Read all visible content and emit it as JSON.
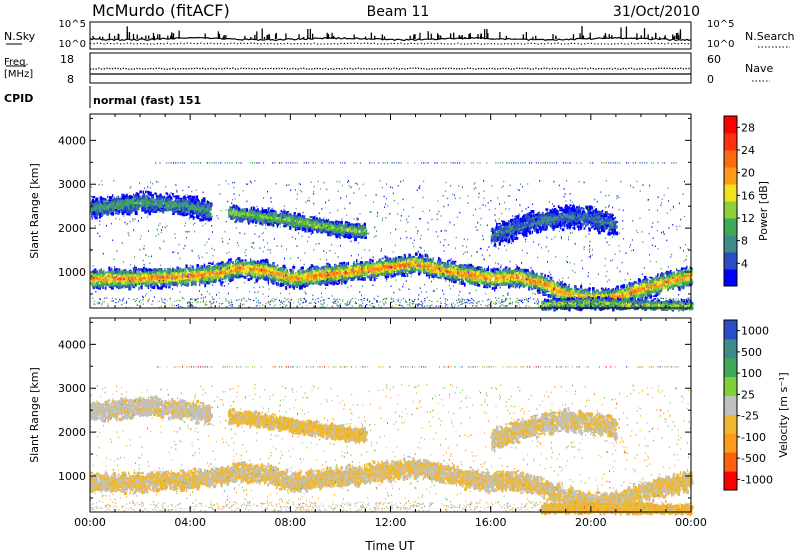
{
  "header": {
    "station": "McMurdo (fitACF)",
    "beam": "Beam 11",
    "date": "31/Oct/2010"
  },
  "top_panels": {
    "nsky_label": "N.Sky",
    "nsearch_label": "N.Search",
    "freq_label_line1": "Freq.",
    "freq_label_line2": "[MHz]",
    "nave_label": "Nave",
    "cpid_label": "CPID",
    "cpid_value": "normal (fast) 151",
    "noise_ticks": [
      "10^5",
      "10^0"
    ],
    "freq_ticks": [
      "18",
      "8"
    ],
    "nave_ticks": [
      "60",
      "0"
    ]
  },
  "colors": {
    "power_scale": [
      "#0000ff",
      "#2a4cc6",
      "#3f8a8a",
      "#3faa55",
      "#8fd03a",
      "#f2e21e",
      "#ff9a1a",
      "#ff6a10",
      "#ff3010",
      "#ff0000"
    ],
    "velocity_scale": [
      "#ff0000",
      "#ff6010",
      "#ff9a1a",
      "#f0b830",
      "#c0c0c0",
      "#7fd03a",
      "#3faa55",
      "#3f8a8a",
      "#2a4cc6"
    ]
  },
  "chart_data": [
    {
      "type": "heatmap",
      "panel": "power",
      "xlabel": "Time UT",
      "ylabel": "Slant Range [km]",
      "x_ticks": [
        "00:00",
        "04:00",
        "08:00",
        "12:00",
        "16:00",
        "20:00",
        "00:00"
      ],
      "xlim": [
        0,
        24
      ],
      "y_ticks": [
        1000,
        2000,
        3000,
        4000
      ],
      "ylim": [
        180,
        4600
      ],
      "colorbar_label": "Power [dB]",
      "colorbar_ticks": [
        4,
        8,
        12,
        16,
        20,
        24,
        28
      ],
      "colorbar_range": [
        0,
        30
      ],
      "bands": [
        {
          "t": [
            0,
            2,
            4,
            5,
            6,
            7,
            8,
            9.5,
            11,
            12,
            13,
            14,
            15,
            16,
            17,
            18,
            19,
            20,
            21,
            22,
            23,
            24
          ],
          "r": [
            870,
            880,
            940,
            1000,
            1120,
            1060,
            880,
            980,
            1080,
            1150,
            1220,
            1080,
            980,
            880,
            920,
            780,
            520,
            420,
            450,
            650,
            800,
            950
          ],
          "w": 160,
          "p": 22
        },
        {
          "t": [
            0,
            1,
            2,
            3,
            4,
            4.8
          ],
          "r": [
            2480,
            2550,
            2620,
            2580,
            2520,
            2420
          ],
          "w": 160,
          "p": 10
        },
        {
          "t": [
            5.5,
            6.5,
            8,
            9,
            10,
            11
          ],
          "r": [
            2380,
            2320,
            2200,
            2100,
            2000,
            1950
          ],
          "w": 120,
          "p": 14
        },
        {
          "t": [
            18,
            19,
            20,
            21,
            22,
            23,
            24
          ],
          "r": [
            280,
            300,
            320,
            300,
            280,
            260,
            250
          ],
          "w": 90,
          "p": 16
        },
        {
          "t": [
            16,
            17,
            18,
            19,
            20,
            21
          ],
          "r": [
            1850,
            2050,
            2200,
            2300,
            2250,
            2100
          ],
          "w": 180,
          "p": 7
        }
      ]
    },
    {
      "type": "heatmap",
      "panel": "velocity",
      "xlabel": "Time UT",
      "ylabel": "Slant Range [km]",
      "x_ticks": [
        "00:00",
        "04:00",
        "08:00",
        "12:00",
        "16:00",
        "20:00",
        "00:00"
      ],
      "xlim": [
        0,
        24
      ],
      "y_ticks": [
        1000,
        2000,
        3000,
        4000
      ],
      "ylim": [
        180,
        4600
      ],
      "colorbar_label": "Velocity [m s⁻¹]",
      "colorbar_ticks": [
        1000,
        500,
        100,
        25,
        -25,
        -100,
        -500,
        -1000
      ],
      "colorbar_range": [
        -1200,
        1200
      ],
      "bands": [
        {
          "t": [
            0,
            2,
            4,
            5,
            6,
            7,
            8,
            9.5,
            11,
            12,
            13,
            14,
            15,
            16,
            17,
            18,
            19,
            20,
            21,
            22,
            23,
            24
          ],
          "r": [
            870,
            880,
            940,
            1000,
            1120,
            1060,
            880,
            980,
            1080,
            1150,
            1220,
            1080,
            980,
            880,
            920,
            780,
            520,
            420,
            450,
            650,
            800,
            950
          ],
          "w": 160,
          "v": -150
        },
        {
          "t": [
            0,
            1,
            2,
            3,
            4,
            4.8
          ],
          "r": [
            2480,
            2550,
            2620,
            2580,
            2520,
            2420
          ],
          "w": 160,
          "v": -80
        },
        {
          "t": [
            5.5,
            6.5,
            8,
            9,
            10,
            11
          ],
          "r": [
            2380,
            2320,
            2200,
            2100,
            2000,
            1950
          ],
          "w": 120,
          "v": -200
        },
        {
          "t": [
            18,
            19,
            20,
            21,
            22,
            23,
            24
          ],
          "r": [
            280,
            300,
            320,
            300,
            280,
            260,
            250
          ],
          "w": 90,
          "v": -300
        },
        {
          "t": [
            16,
            17,
            18,
            19,
            20,
            21
          ],
          "r": [
            1850,
            2050,
            2200,
            2300,
            2250,
            2100
          ],
          "w": 180,
          "v": -120
        }
      ]
    }
  ]
}
